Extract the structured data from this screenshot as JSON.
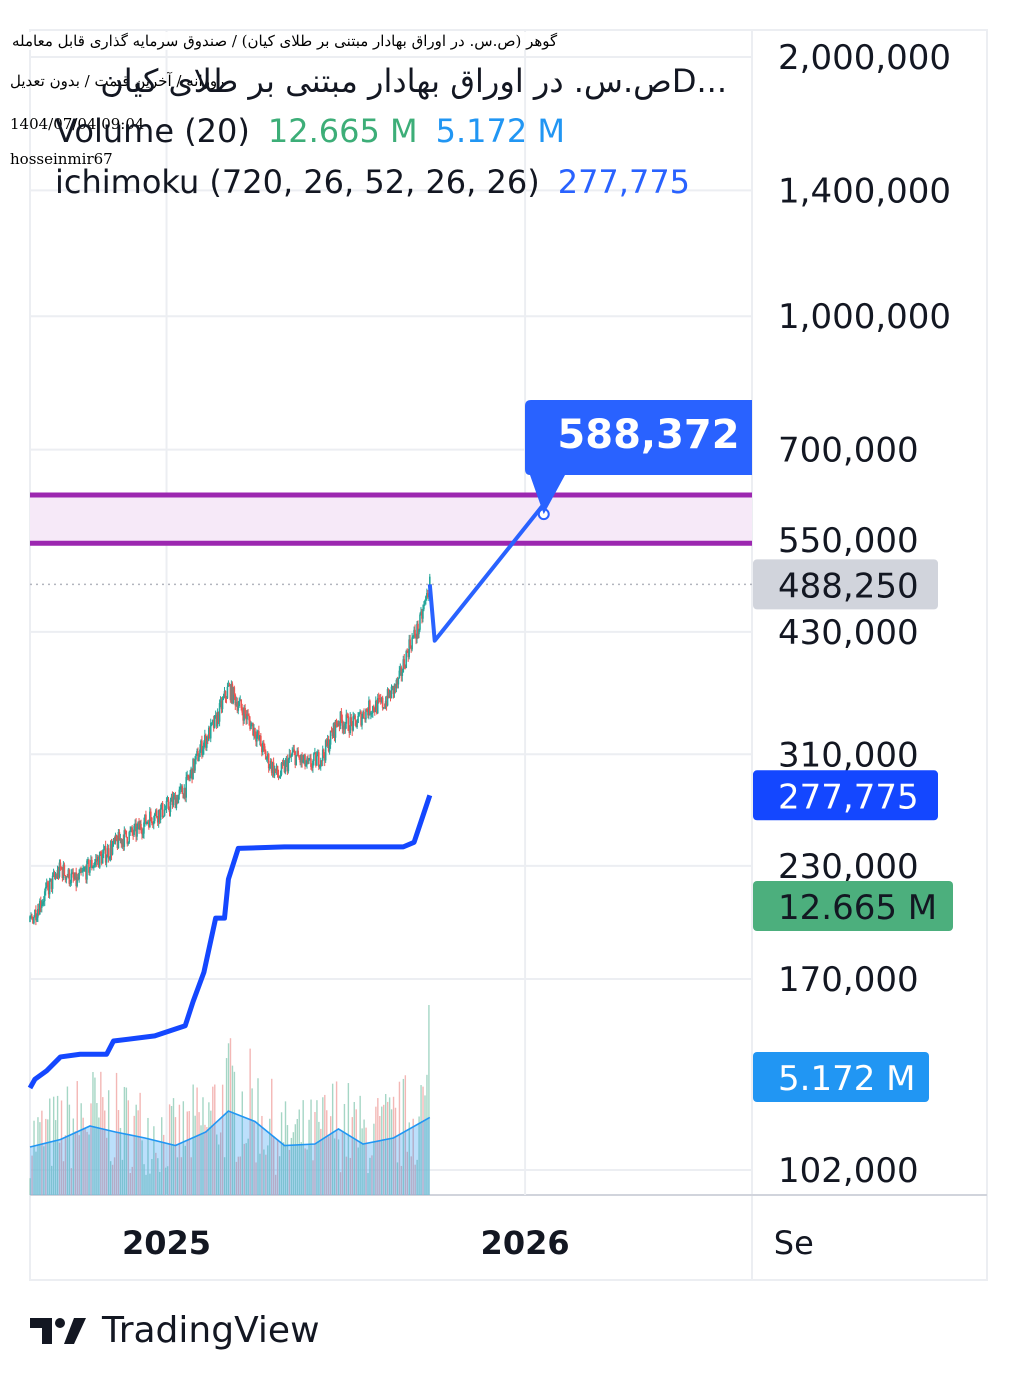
{
  "overlay": {
    "line1": "گوهر (ص.س. در اوراق بهادار مبتنی بر طلای کیان) / صندوق سرمایه گذاری قابل معامله",
    "line2": "روزانه / آخرین قیمت / بدون تعدیل",
    "line3": "1404/07/04 09:04",
    "line4": "hosseinmir67"
  },
  "header": {
    "symbol": "...Dص.س. در اوراق بهادار مبتنی بر طلای کیان",
    "volume_label": "Volume (20)",
    "volume_value": "12.665 M",
    "volume_ma_value": "5.172 M",
    "ichimoku_label": "ichimoku (720, 26, 52, 26, 26)",
    "ichimoku_value": "277,775"
  },
  "colors": {
    "up": "#26a69a",
    "down": "#ef5350",
    "ichimoku": "#1447ff",
    "projection": "#2962ff",
    "zone_border": "#9c27b0",
    "zone_fill": "#f6e9f8",
    "volume_ma": "#2196f3",
    "volume_badge": "#4caf7d",
    "grid": "#eceef2",
    "last_price_badge": "#d1d4dc"
  },
  "chart_data": {
    "type": "candlestick",
    "scale": "log",
    "y_tick_labels": [
      "2,000,000",
      "1,400,000",
      "1,000,000",
      "700,000",
      "550,000",
      "430,000",
      "310,000",
      "230,000",
      "170,000",
      "102,000"
    ],
    "y_ticks": [
      2000000,
      1400000,
      1000000,
      700000,
      550000,
      430000,
      310000,
      230000,
      170000,
      102000
    ],
    "x_tick_labels": [
      "2025",
      "2026",
      "Se"
    ],
    "x_ticks": [
      "2025-01-01",
      "2026-01-01",
      "2026-09-01"
    ],
    "x_range": [
      "2024-08-15",
      "2026-08-20"
    ],
    "price_series": [
      [
        "2024-08-15",
        198000
      ],
      [
        "2024-09-01",
        215000
      ],
      [
        "2024-09-15",
        228000
      ],
      [
        "2024-10-01",
        220000
      ],
      [
        "2024-10-15",
        230000
      ],
      [
        "2024-11-01",
        238000
      ],
      [
        "2024-11-15",
        247000
      ],
      [
        "2024-12-01",
        252000
      ],
      [
        "2024-12-15",
        262000
      ],
      [
        "2025-01-01",
        268000
      ],
      [
        "2025-01-20",
        283000
      ],
      [
        "2025-02-05",
        315000
      ],
      [
        "2025-02-20",
        338000
      ],
      [
        "2025-03-05",
        370000
      ],
      [
        "2025-03-15",
        355000
      ],
      [
        "2025-04-01",
        330000
      ],
      [
        "2025-04-12",
        308000
      ],
      [
        "2025-04-25",
        292000
      ],
      [
        "2025-05-10",
        310000
      ],
      [
        "2025-05-25",
        300000
      ],
      [
        "2025-06-10",
        310000
      ],
      [
        "2025-06-25",
        340000
      ],
      [
        "2025-07-10",
        335000
      ],
      [
        "2025-07-25",
        350000
      ],
      [
        "2025-08-10",
        355000
      ],
      [
        "2025-08-25",
        375000
      ],
      [
        "2025-09-05",
        415000
      ],
      [
        "2025-09-15",
        435000
      ],
      [
        "2025-09-26",
        488250
      ]
    ],
    "ichimoku_line": [
      [
        "2024-08-15",
        127000
      ],
      [
        "2024-08-20",
        130000
      ],
      [
        "2024-09-01",
        133000
      ],
      [
        "2024-09-15",
        138000
      ],
      [
        "2024-10-05",
        139000
      ],
      [
        "2024-11-01",
        139000
      ],
      [
        "2024-11-08",
        144000
      ],
      [
        "2024-12-20",
        146000
      ],
      [
        "2025-01-20",
        150000
      ],
      [
        "2025-01-28",
        160000
      ],
      [
        "2025-02-08",
        173000
      ],
      [
        "2025-02-20",
        200000
      ],
      [
        "2025-03-01",
        200000
      ],
      [
        "2025-03-05",
        222000
      ],
      [
        "2025-03-15",
        241000
      ],
      [
        "2025-05-01",
        242000
      ],
      [
        "2025-08-30",
        242000
      ],
      [
        "2025-09-10",
        245000
      ],
      [
        "2025-09-20",
        265000
      ],
      [
        "2025-09-26",
        277775
      ]
    ],
    "volume_scale_max": 20000000,
    "volume_ma": [
      [
        "2024-08-15",
        3200000
      ],
      [
        "2024-09-15",
        3700000
      ],
      [
        "2024-10-15",
        4600000
      ],
      [
        "2024-11-10",
        4200000
      ],
      [
        "2024-12-10",
        3800000
      ],
      [
        "2025-01-10",
        3300000
      ],
      [
        "2025-02-10",
        4200000
      ],
      [
        "2025-03-05",
        5600000
      ],
      [
        "2025-04-01",
        4900000
      ],
      [
        "2025-05-01",
        3300000
      ],
      [
        "2025-06-01",
        3400000
      ],
      [
        "2025-06-25",
        4400000
      ],
      [
        "2025-07-20",
        3400000
      ],
      [
        "2025-08-20",
        3800000
      ],
      [
        "2025-09-26",
        5172000
      ]
    ],
    "projection": [
      [
        "2025-09-26",
        488250
      ],
      [
        "2025-10-01",
        420000
      ],
      [
        "2026-01-20",
        605000
      ]
    ],
    "projection_label": "588,372",
    "target_zone": [
      545000,
      620000
    ],
    "last_price_label": "488,250",
    "last_price": 488250,
    "ichimoku_badge": "277,775",
    "ichimoku_last": 277775,
    "volume_badge": "12.665 M",
    "volume_ma_badge": "5.172 M",
    "grid": true
  },
  "footer": {
    "brand": "TradingView"
  }
}
